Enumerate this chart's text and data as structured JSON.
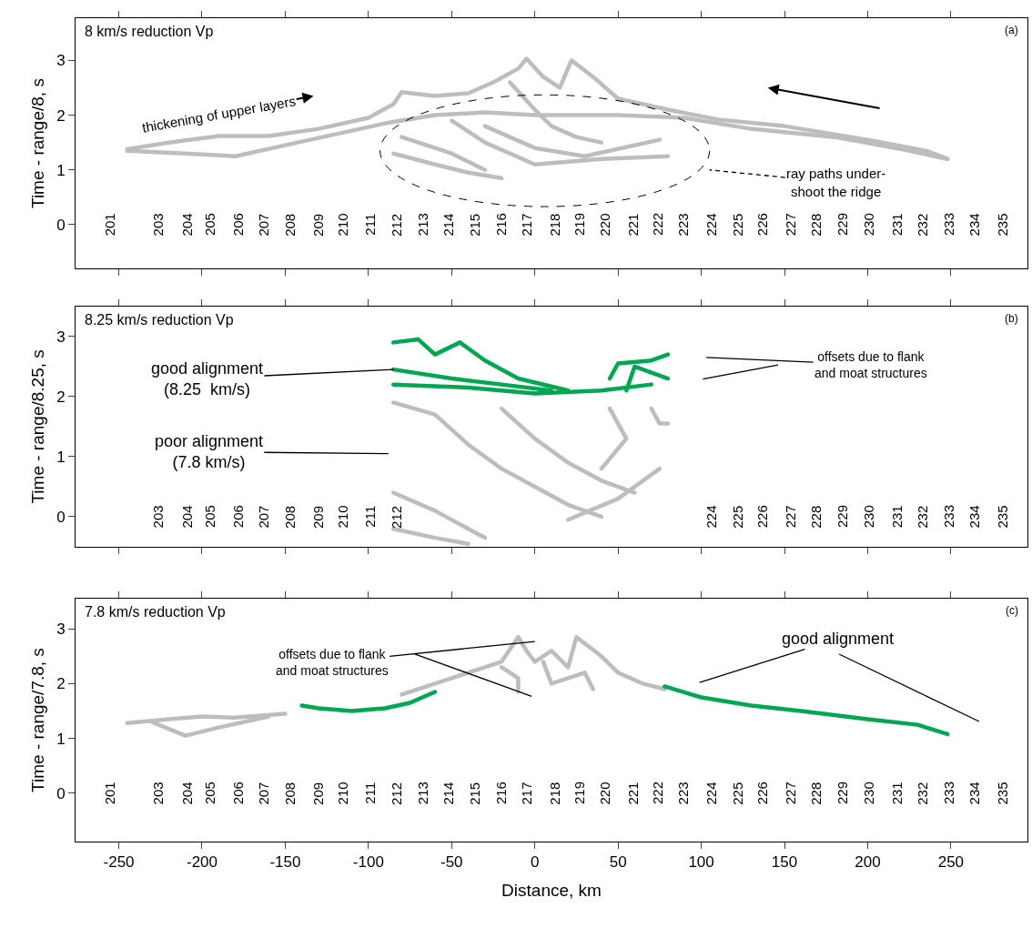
{
  "chart_data": [
    {
      "type": "line",
      "title": "8 km/s reduction Vp",
      "ylabel": "Time - range/8, s",
      "xlim": [
        -276,
        296
      ],
      "xticks": [
        -250,
        -200,
        -150,
        -100,
        -50,
        0,
        50,
        100,
        150,
        200,
        250
      ],
      "ylim": [
        -0.8,
        3.77
      ],
      "yticks": [
        0,
        1,
        2,
        3
      ],
      "tick_labels": "y",
      "annotations": [
        "(a)",
        "thickening of upper layers",
        "ray paths under-\nshoot the ridge",
        "201",
        "203",
        "204",
        "205",
        "206",
        "207",
        "208",
        "209",
        "210",
        "211",
        "212",
        "213",
        "214",
        "215",
        "216",
        "217",
        "218",
        "219",
        "220",
        "221",
        "222",
        "223",
        "224",
        "225",
        "226",
        "227",
        "228",
        "229",
        "230",
        "231",
        "232",
        "233",
        "234",
        "235"
      ],
      "series": [
        {
          "color": "#bdbdbd",
          "x": [
            -245,
            -220,
            -190,
            -160,
            -130,
            -100,
            -85,
            -80,
            -60,
            -40,
            -25,
            -10,
            -5,
            5,
            15,
            22,
            35,
            50,
            80,
            110,
            150,
            200,
            235,
            248
          ],
          "values": [
            1.38,
            1.5,
            1.62,
            1.62,
            1.75,
            1.95,
            2.2,
            2.42,
            2.35,
            2.4,
            2.6,
            2.85,
            3.03,
            2.7,
            2.5,
            3.0,
            2.7,
            2.3,
            2.1,
            1.92,
            1.8,
            1.55,
            1.35,
            1.2
          ]
        },
        {
          "color": "#bdbdbd",
          "x": [
            -245,
            -210,
            -180,
            -150,
            -120,
            -90,
            -60,
            -30,
            0,
            50,
            90,
            130,
            180,
            220,
            248
          ],
          "values": [
            1.35,
            1.3,
            1.25,
            1.45,
            1.65,
            1.85,
            2.0,
            2.05,
            2.0,
            2.0,
            1.95,
            1.75,
            1.6,
            1.38,
            1.2
          ]
        },
        {
          "color": "#bdbdbd",
          "x": [
            -85,
            -60,
            -40,
            -20
          ],
          "values": [
            1.3,
            1.1,
            0.95,
            0.85
          ]
        },
        {
          "color": "#bdbdbd",
          "x": [
            -50,
            -30,
            0,
            40,
            80
          ],
          "values": [
            1.9,
            1.5,
            1.1,
            1.2,
            1.25
          ]
        },
        {
          "color": "#bdbdbd",
          "x": [
            -30,
            0,
            30,
            75
          ],
          "values": [
            1.8,
            1.4,
            1.25,
            1.55
          ]
        },
        {
          "color": "#bdbdbd",
          "x": [
            -80,
            -50,
            -30
          ],
          "values": [
            1.6,
            1.3,
            1.0
          ]
        },
        {
          "color": "#bdbdbd",
          "x": [
            -15,
            0,
            10,
            25,
            40
          ],
          "values": [
            2.6,
            2.1,
            1.8,
            1.6,
            1.5
          ]
        }
      ]
    },
    {
      "type": "line",
      "title": "8.25 km/s reduction Vp",
      "ylabel": "Time - range/8.25, s",
      "xlim": [
        -276,
        296
      ],
      "xticks": [
        -250,
        -200,
        -150,
        -100,
        -50,
        0,
        50,
        100,
        150,
        200,
        250
      ],
      "ylim": [
        -0.5,
        3.5
      ],
      "yticks": [
        0,
        1,
        2,
        3
      ],
      "tick_labels": "y",
      "annotations": [
        "(b)",
        {
          "text": "good alignment\n(8.25  km/s)",
          "x": -85,
          "y": 2.45
        },
        "poor alignment\n(7.8 km/s)",
        "offsets due to flank\nand moat structures",
        "203",
        "204",
        "205",
        "206",
        "207",
        "208",
        "209",
        "210",
        "211",
        "212",
        "224",
        "225",
        "226",
        "227",
        "228",
        "229",
        "230",
        "231",
        "232",
        "233",
        "234",
        "235"
      ],
      "series": [
        {
          "color": "#00a651",
          "x": [
            -85,
            -70,
            -60,
            -45,
            -30,
            -10,
            20
          ],
          "values": [
            2.9,
            2.95,
            2.7,
            2.9,
            2.6,
            2.3,
            2.1
          ]
        },
        {
          "color": "#00a651",
          "x": [
            -85,
            -40,
            0,
            40,
            70
          ],
          "values": [
            2.2,
            2.15,
            2.05,
            2.1,
            2.2
          ]
        },
        {
          "color": "#00a651",
          "x": [
            -85,
            -50,
            -20,
            10
          ],
          "values": [
            2.45,
            2.3,
            2.2,
            2.1
          ]
        },
        {
          "color": "#00a651",
          "x": [
            45,
            50,
            70,
            80
          ],
          "values": [
            2.3,
            2.55,
            2.6,
            2.7
          ]
        },
        {
          "color": "#00a651",
          "x": [
            55,
            60,
            80
          ],
          "values": [
            2.1,
            2.5,
            2.3
          ]
        },
        {
          "color": "#bdbdbd",
          "x": [
            -85,
            -60,
            -40,
            -20,
            0,
            20,
            40
          ],
          "values": [
            1.9,
            1.7,
            1.2,
            0.8,
            0.5,
            0.2,
            0.0
          ]
        },
        {
          "color": "#bdbdbd",
          "x": [
            -20,
            0,
            20,
            40,
            60
          ],
          "values": [
            1.8,
            1.3,
            0.9,
            0.6,
            0.4
          ]
        },
        {
          "color": "#bdbdbd",
          "x": [
            45,
            55,
            40
          ],
          "values": [
            1.8,
            1.3,
            0.8
          ]
        },
        {
          "color": "#bdbdbd",
          "x": [
            70,
            75,
            80
          ],
          "values": [
            1.8,
            1.55,
            1.55
          ]
        },
        {
          "color": "#bdbdbd",
          "x": [
            -85,
            -60,
            -40,
            -30
          ],
          "values": [
            0.4,
            0.1,
            -0.2,
            -0.35
          ]
        },
        {
          "color": "#bdbdbd",
          "x": [
            -85,
            -60,
            -40
          ],
          "values": [
            -0.2,
            -0.35,
            -0.45
          ]
        },
        {
          "color": "#bdbdbd",
          "x": [
            20,
            50,
            75
          ],
          "values": [
            -0.05,
            0.3,
            0.8
          ]
        }
      ]
    },
    {
      "type": "line",
      "title": "7.8 km/s reduction Vp",
      "ylabel": "Time - range/7.8, s",
      "xlabel": "Distance, km",
      "xlim": [
        -276,
        296
      ],
      "xticks": [
        -250,
        -200,
        -150,
        -100,
        -50,
        0,
        50,
        100,
        150,
        200,
        250
      ],
      "ylim": [
        -0.88,
        3.55
      ],
      "yticks": [
        0,
        1,
        2,
        3
      ],
      "annotations": [
        "(c)",
        "offsets due to flank\nand moat structures",
        "good alignment",
        "201",
        "203",
        "204",
        "205",
        "206",
        "207",
        "208",
        "209",
        "210",
        "211",
        "212",
        "213",
        "214",
        "215",
        "216",
        "217",
        "218",
        "219",
        "220",
        "221",
        "222",
        "223",
        "224",
        "225",
        "226",
        "227",
        "228",
        "229",
        "230",
        "231",
        "232",
        "233",
        "234",
        "235"
      ],
      "series": [
        {
          "color": "#bdbdbd",
          "x": [
            -245,
            -220,
            -200,
            -180,
            -150
          ],
          "values": [
            1.28,
            1.35,
            1.4,
            1.38,
            1.45
          ]
        },
        {
          "color": "#bdbdbd",
          "x": [
            -230,
            -210,
            -190,
            -160
          ],
          "values": [
            1.3,
            1.05,
            1.2,
            1.4
          ]
        },
        {
          "color": "#00a651",
          "x": [
            -140,
            -130,
            -110,
            -90,
            -75,
            -60
          ],
          "values": [
            1.6,
            1.55,
            1.5,
            1.55,
            1.65,
            1.85
          ]
        },
        {
          "color": "#bdbdbd",
          "x": [
            -80,
            -60,
            -40,
            -20,
            -10,
            -5,
            0,
            10,
            20,
            25,
            40,
            50,
            65,
            78
          ],
          "values": [
            1.8,
            2.0,
            2.2,
            2.4,
            2.85,
            2.6,
            2.4,
            2.6,
            2.3,
            2.85,
            2.5,
            2.2,
            2.0,
            1.9
          ]
        },
        {
          "color": "#bdbdbd",
          "x": [
            -20,
            -10,
            -10
          ],
          "values": [
            2.3,
            2.1,
            1.85
          ]
        },
        {
          "color": "#bdbdbd",
          "x": [
            5,
            10,
            30,
            35
          ],
          "values": [
            2.4,
            2.0,
            2.2,
            1.9
          ]
        },
        {
          "color": "#00a651",
          "x": [
            78,
            100,
            130,
            160,
            200,
            230,
            248
          ],
          "values": [
            1.95,
            1.75,
            1.6,
            1.5,
            1.35,
            1.25,
            1.08
          ]
        }
      ]
    }
  ]
}
